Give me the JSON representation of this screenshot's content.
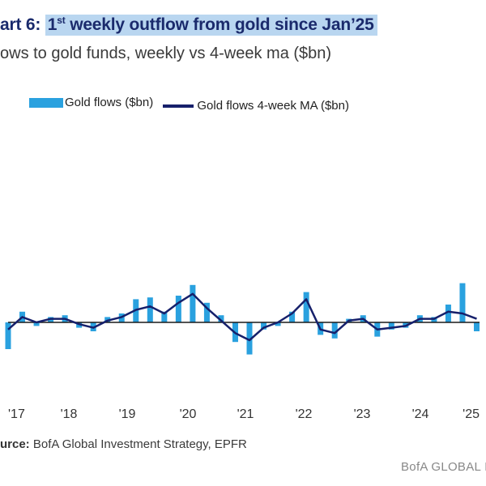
{
  "header": {
    "title_prefix": "art 6: ",
    "title_highlight_pre": "1",
    "title_highlight_sup": "st",
    "title_highlight_post": " weekly outflow from gold since Jan’25",
    "subtitle": "ows to gold funds, weekly vs 4-week ma ($bn)"
  },
  "legend": {
    "bars_label": "Gold flows ($bn)",
    "line_label": "Gold flows 4-week MA ($bn)"
  },
  "footer": {
    "source_label": "urce:",
    "source_text": " BofA Global Investment Strategy, EPFR",
    "brand": "BofA GLOBAL I"
  },
  "colors": {
    "bars": "#2aa1df",
    "ma_line": "#16206b",
    "zero_line": "#1a1a1a",
    "title_highlight": "#b9d6f0"
  },
  "chart_data": {
    "type": "bar",
    "title": "",
    "xlabel": "",
    "ylabel": "",
    "x_ticks": [
      "'17",
      "'18",
      "'19",
      "'20",
      "'21",
      "'22",
      "'23",
      "'24",
      "'25"
    ],
    "x_range": [
      2017.0,
      2025.3
    ],
    "ylim": [
      -4,
      4
    ],
    "grid": false,
    "legend_position": "top-left",
    "series": [
      {
        "name": "Gold flows ($bn)",
        "kind": "bar",
        "sampling": "quarterly",
        "x": [
          2017.0,
          2017.25,
          2017.5,
          2017.75,
          2018.0,
          2018.25,
          2018.5,
          2018.75,
          2019.0,
          2019.25,
          2019.5,
          2019.75,
          2020.0,
          2020.25,
          2020.5,
          2020.75,
          2021.0,
          2021.25,
          2021.5,
          2021.75,
          2022.0,
          2022.25,
          2022.5,
          2022.75,
          2023.0,
          2023.25,
          2023.5,
          2023.75,
          2024.0,
          2024.25,
          2024.5,
          2024.75,
          2025.0,
          2025.25
        ],
        "values": [
          -1.5,
          0.6,
          -0.2,
          0.3,
          0.4,
          -0.3,
          -0.5,
          0.3,
          0.5,
          1.3,
          1.4,
          0.6,
          1.5,
          2.1,
          1.1,
          0.4,
          -1.1,
          -1.8,
          -0.4,
          -0.2,
          0.6,
          1.7,
          -0.7,
          -0.9,
          0.2,
          0.4,
          -0.8,
          -0.4,
          -0.3,
          0.4,
          0.3,
          1.0,
          2.2,
          -0.5
        ]
      },
      {
        "name": "Gold flows 4-week MA ($bn)",
        "kind": "line",
        "sampling": "quarterly",
        "x": [
          2017.0,
          2017.25,
          2017.5,
          2017.75,
          2018.0,
          2018.25,
          2018.5,
          2018.75,
          2019.0,
          2019.25,
          2019.5,
          2019.75,
          2020.0,
          2020.25,
          2020.5,
          2020.75,
          2021.0,
          2021.25,
          2021.5,
          2021.75,
          2022.0,
          2022.25,
          2022.5,
          2022.75,
          2023.0,
          2023.25,
          2023.5,
          2023.75,
          2024.0,
          2024.25,
          2024.5,
          2024.75,
          2025.0,
          2025.25
        ],
        "values": [
          -0.4,
          0.3,
          0.0,
          0.2,
          0.2,
          -0.1,
          -0.3,
          0.1,
          0.3,
          0.7,
          0.9,
          0.5,
          1.1,
          1.6,
          0.8,
          0.1,
          -0.6,
          -1.0,
          -0.3,
          0.0,
          0.5,
          1.3,
          -0.4,
          -0.6,
          0.1,
          0.2,
          -0.4,
          -0.3,
          -0.2,
          0.2,
          0.2,
          0.6,
          0.5,
          0.2
        ]
      }
    ]
  }
}
